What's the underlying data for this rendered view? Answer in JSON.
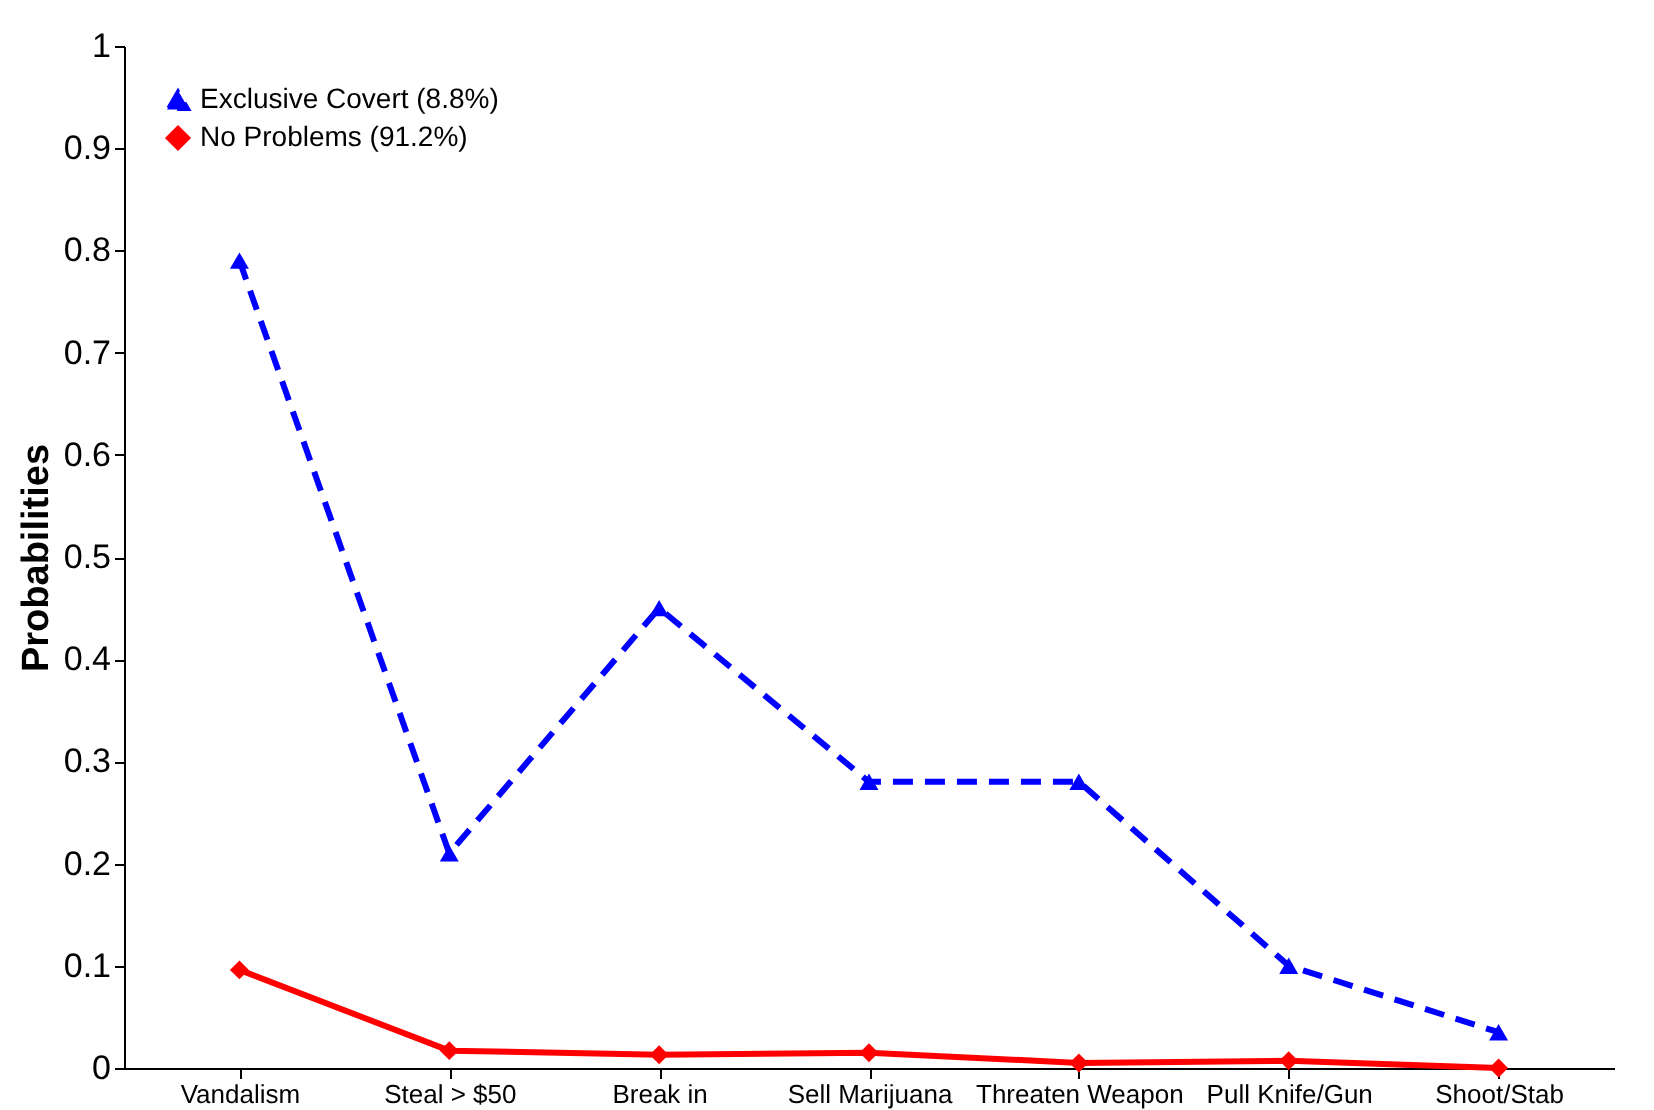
{
  "chart_data": {
    "type": "line",
    "ylabel": "Probabilities",
    "categories": [
      "Vandalism",
      "Steal > $50",
      "Break in",
      "Sell Marijuana",
      "Threaten Weapon",
      "Pull Knife/Gun",
      "Shoot/Stab"
    ],
    "series": [
      {
        "name": "Exclusive Covert (8.8%)",
        "color": "#0000ff",
        "marker": "triangle",
        "line_style": "dashed",
        "values": [
          0.79,
          0.21,
          0.45,
          0.28,
          0.28,
          0.1,
          0.035
        ]
      },
      {
        "name": "No Problems (91.2%)",
        "color": "#ff0000",
        "marker": "diamond",
        "line_style": "solid",
        "values": [
          0.096,
          0.017,
          0.013,
          0.015,
          0.005,
          0.007,
          0.0
        ]
      }
    ],
    "ylim": [
      0,
      1
    ],
    "yticks": [
      0,
      0.1,
      0.2,
      0.3,
      0.4,
      0.5,
      0.6,
      0.7,
      0.8,
      0.9,
      1
    ],
    "grid": false,
    "legend": "top left"
  }
}
